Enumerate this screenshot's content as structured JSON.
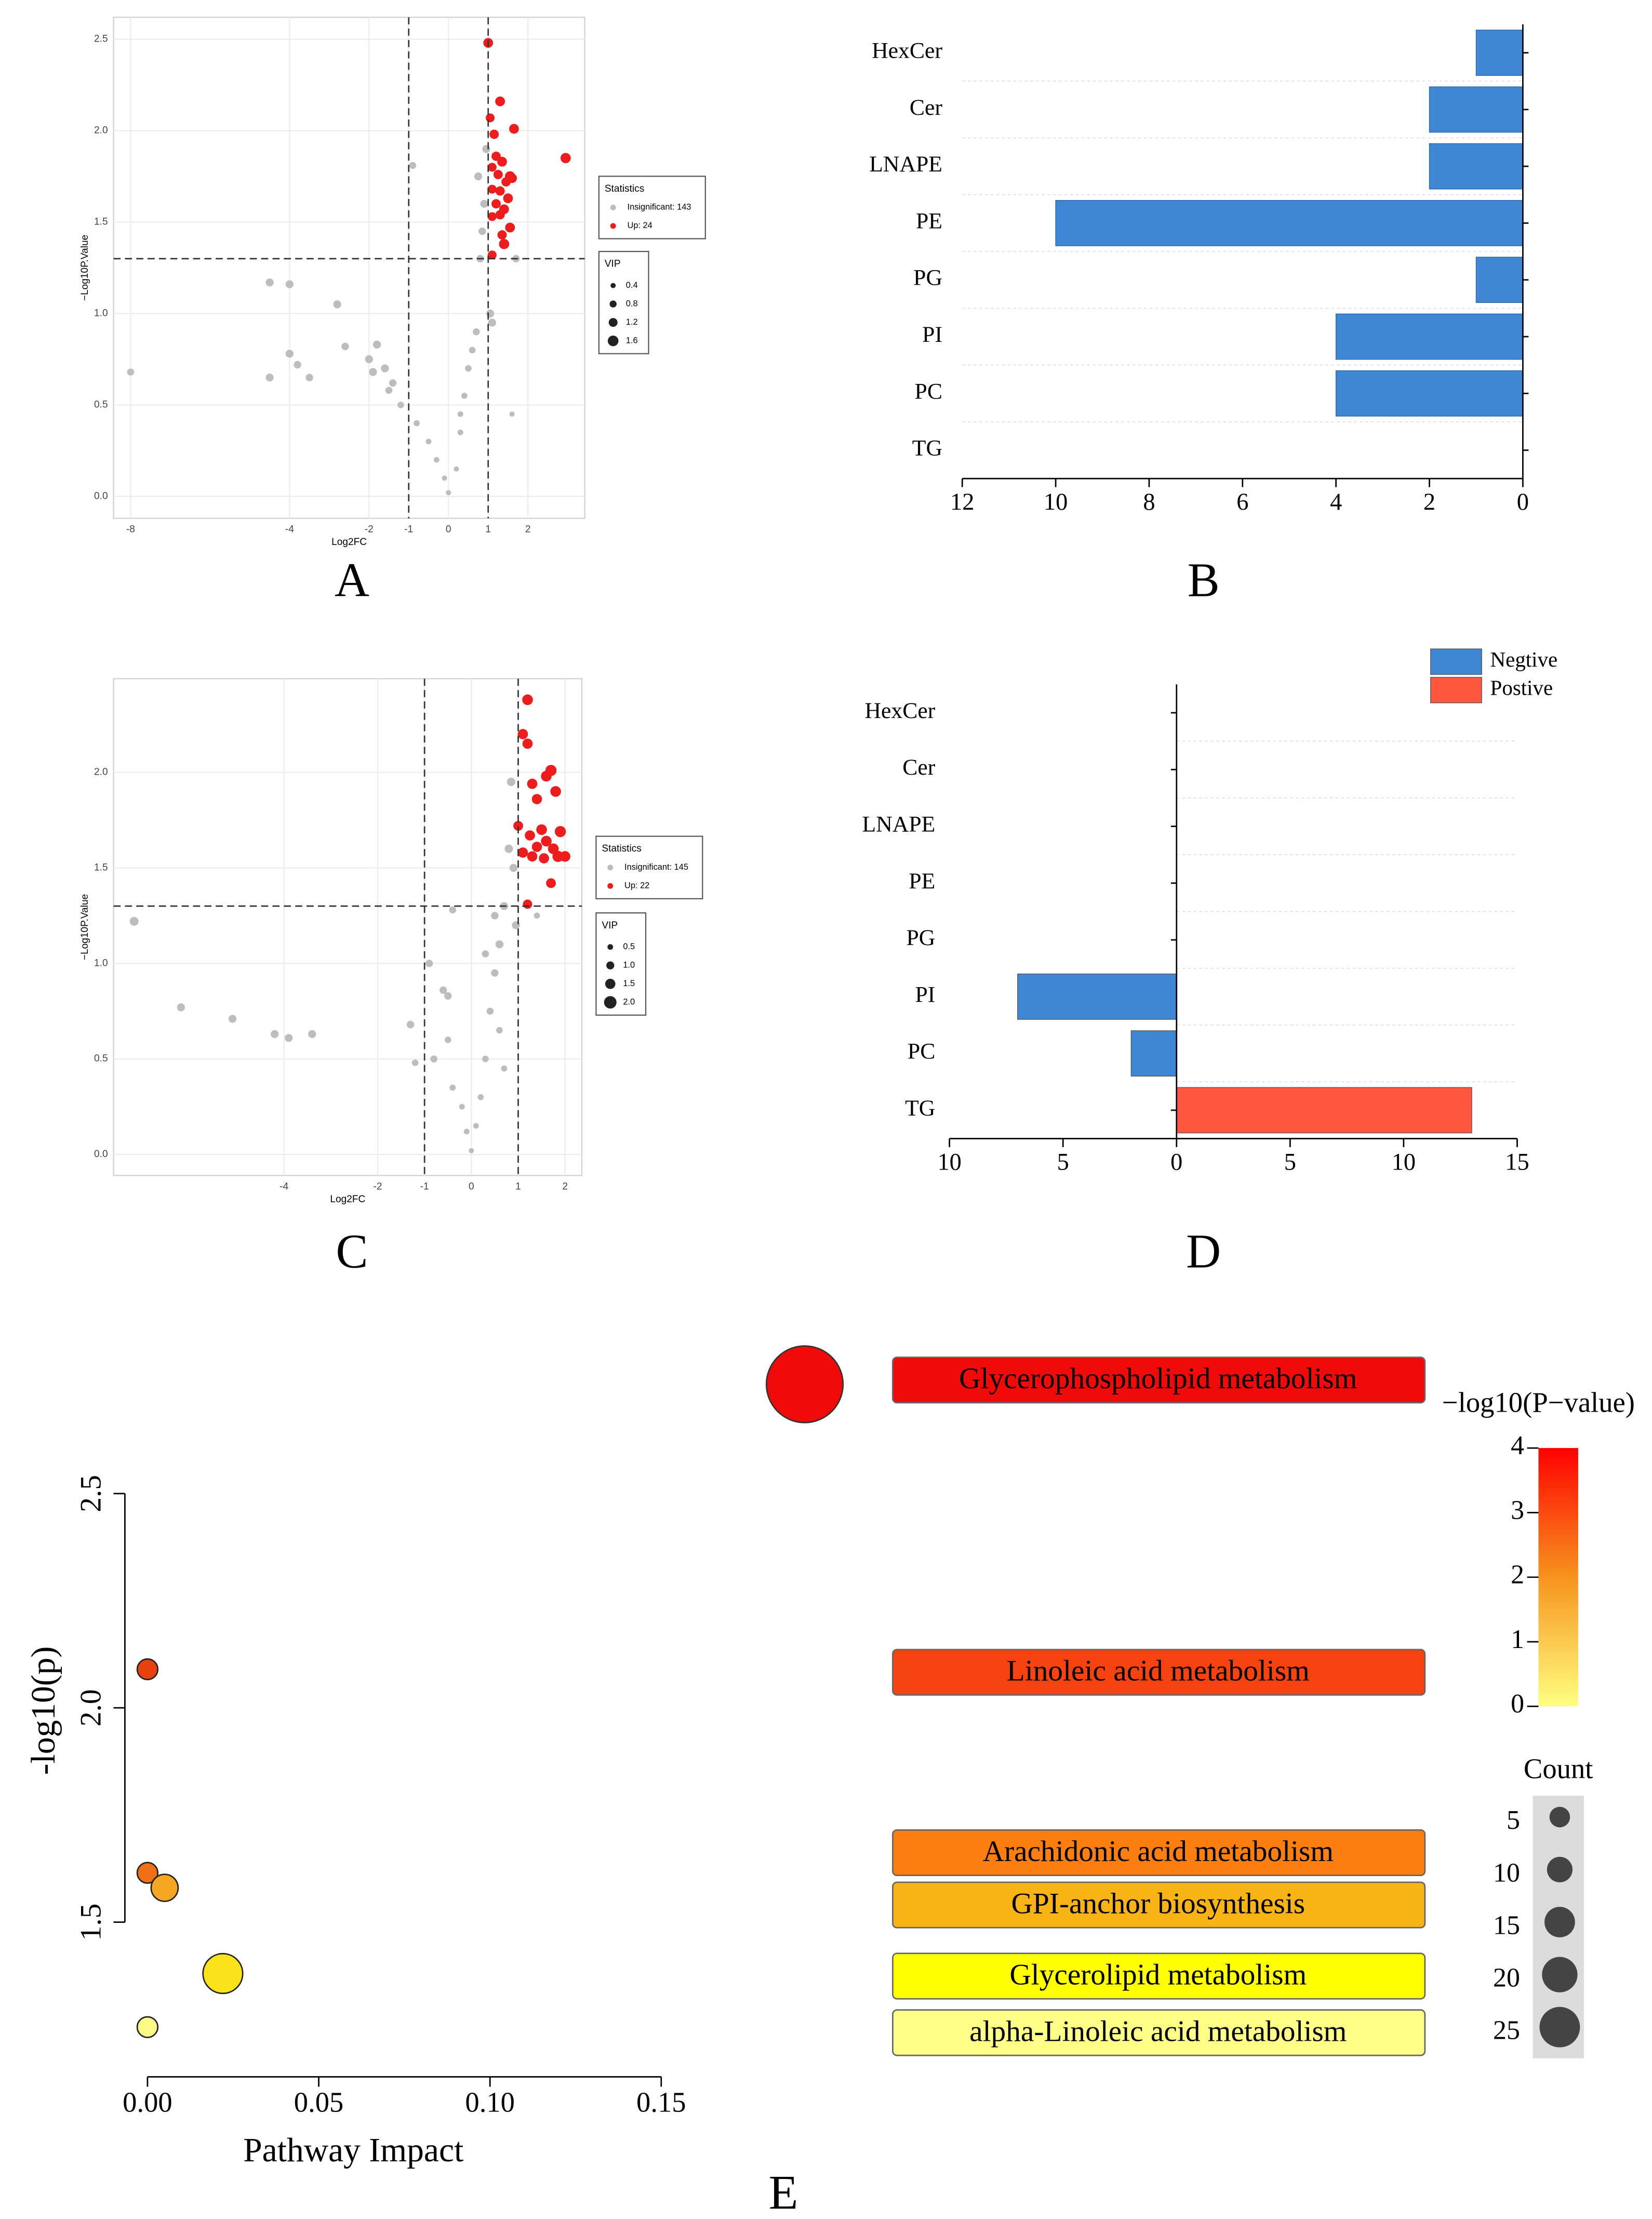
{
  "chart_data": [
    {
      "type": "scatter",
      "panel_label": "A",
      "xlabel": "Log2FC",
      "ylabel": "−Log10P.Value",
      "xlim": [
        -8.43,
        3.43
      ],
      "ylim": [
        -0.12,
        2.62
      ],
      "xticks": [
        -8,
        -4,
        -2,
        -1,
        0,
        1,
        2
      ],
      "yticks": [
        {
          "value": 0,
          "label": "0.0"
        },
        0.5,
        {
          "value": 1,
          "label": "1.0"
        },
        1.5,
        {
          "value": 2,
          "label": "2.0"
        },
        2.5
      ],
      "vlines": [
        -1,
        1
      ],
      "hline": 1.3,
      "grid": true,
      "legend_title": "Statistics",
      "size_title": "VIP",
      "size_ticks": [
        0.4,
        0.8,
        1.2,
        1.6
      ],
      "series": [
        {
          "name": "Insignificant: 143",
          "color": "#bdbdbd",
          "x": [
            -8.0,
            -4.5,
            -4.0,
            -2.8,
            -4.0,
            -4.5,
            -3.8,
            -3.5,
            -2.6,
            -2.0,
            -1.8,
            -1.6,
            -1.4,
            -1.9,
            -1.5,
            -1.2,
            -0.9,
            -0.8,
            -0.5,
            -0.3,
            -0.1,
            0.0,
            0.2,
            0.3,
            0.4,
            0.5,
            0.7,
            0.8,
            0.9,
            0.95,
            0.85,
            1.05,
            1.1,
            0.6,
            0.3,
            1.6,
            1.7,
            0.75
          ],
          "values": [
            0.68,
            1.17,
            1.16,
            1.05,
            0.78,
            0.65,
            0.72,
            0.65,
            0.82,
            0.75,
            0.83,
            0.7,
            0.62,
            0.68,
            0.58,
            0.5,
            1.81,
            0.4,
            0.3,
            0.2,
            0.1,
            0.02,
            0.15,
            0.35,
            0.55,
            0.7,
            0.9,
            1.3,
            1.6,
            1.9,
            1.45,
            1.0,
            0.95,
            0.8,
            0.45,
            0.45,
            1.3,
            1.75
          ],
          "sizes": [
            0.8,
            1.0,
            1.0,
            1.0,
            1.0,
            1.0,
            0.9,
            0.9,
            0.9,
            1.0,
            1.0,
            1.0,
            0.9,
            1.0,
            0.8,
            0.7,
            0.8,
            0.6,
            0.5,
            0.5,
            0.4,
            0.4,
            0.4,
            0.5,
            0.6,
            0.7,
            0.8,
            0.9,
            1.0,
            1.0,
            0.9,
            1.0,
            1.0,
            0.7,
            0.5,
            0.4,
            0.9,
            1.0
          ]
        },
        {
          "name": "Up: 24",
          "color": "#ee1c1c",
          "x": [
            1.0,
            1.3,
            1.05,
            1.65,
            1.15,
            2.95,
            1.2,
            1.35,
            1.1,
            1.25,
            1.55,
            1.45,
            1.6,
            1.1,
            1.3,
            1.5,
            1.2,
            1.4,
            1.1,
            1.3,
            1.55,
            1.35,
            1.4,
            1.1
          ],
          "values": [
            2.48,
            2.16,
            2.07,
            2.01,
            1.98,
            1.85,
            1.86,
            1.83,
            1.8,
            1.76,
            1.75,
            1.72,
            1.74,
            1.68,
            1.67,
            1.63,
            1.6,
            1.57,
            1.53,
            1.54,
            1.47,
            1.43,
            1.38,
            1.32
          ],
          "sizes": [
            1.4,
            1.4,
            1.2,
            1.4,
            1.3,
            1.5,
            1.3,
            1.4,
            1.2,
            1.3,
            1.5,
            1.3,
            1.4,
            1.2,
            1.3,
            1.4,
            1.3,
            1.4,
            1.2,
            1.3,
            1.4,
            1.3,
            1.5,
            1.2
          ]
        }
      ]
    },
    {
      "type": "bar",
      "panel_label": "B",
      "categories": [
        "HexCer",
        "Cer",
        "LNAPE",
        "PE",
        "PG",
        "PI",
        "PC",
        "TG"
      ],
      "values": [
        1,
        2,
        2,
        10,
        1,
        4,
        4,
        0
      ],
      "color": "#3f87d4",
      "xlim": [
        12,
        0
      ],
      "xticks": [
        12,
        10,
        8,
        6,
        4,
        2,
        0
      ]
    },
    {
      "type": "scatter",
      "panel_label": "C",
      "xlabel": "Log2FC",
      "ylabel": "−Log10P.Value",
      "xlim": [
        -7.64,
        2.36
      ],
      "ylim": [
        -0.11,
        2.49
      ],
      "xticks": [
        -4,
        -2,
        -1,
        0,
        1,
        2
      ],
      "yticks": [
        {
          "value": 0,
          "label": "0.0"
        },
        0.5,
        {
          "value": 1,
          "label": "1.0"
        },
        1.5,
        {
          "value": 2,
          "label": "2.0"
        }
      ],
      "vlines": [
        -1,
        1
      ],
      "hline": 1.3,
      "grid": true,
      "legend_title": "Statistics",
      "size_title": "VIP",
      "size_ticks": [
        0.5,
        {
          "value": 1,
          "label": "1.0"
        },
        1.5,
        {
          "value": 2,
          "label": "2.0"
        }
      ],
      "series": [
        {
          "name": "Insignificant: 145",
          "color": "#bdbdbd",
          "x": [
            -7.2,
            -6.2,
            -5.1,
            -4.2,
            -3.9,
            -3.4,
            -1.3,
            -0.9,
            -0.6,
            -0.5,
            -1.2,
            -0.8,
            -0.5,
            -0.4,
            -0.2,
            -0.1,
            0.0,
            0.1,
            0.2,
            0.3,
            0.4,
            0.5,
            0.6,
            0.7,
            0.8,
            0.85,
            0.9,
            0.5,
            0.3,
            0.6,
            -0.4,
            1.4,
            0.95,
            0.7
          ],
          "values": [
            1.22,
            0.77,
            0.71,
            0.63,
            0.61,
            0.63,
            0.68,
            1.0,
            0.86,
            0.83,
            0.48,
            0.5,
            0.6,
            0.35,
            0.25,
            0.12,
            0.02,
            0.15,
            0.3,
            0.5,
            0.75,
            0.95,
            1.1,
            1.3,
            1.6,
            1.95,
            1.5,
            1.25,
            1.05,
            0.65,
            1.28,
            1.25,
            1.2,
            0.45
          ],
          "sizes": [
            1.2,
            1.0,
            1.0,
            1.0,
            1.0,
            1.0,
            0.9,
            0.9,
            0.9,
            0.9,
            0.7,
            0.8,
            0.7,
            0.6,
            0.5,
            0.5,
            0.4,
            0.5,
            0.6,
            0.7,
            0.8,
            0.9,
            1.0,
            1.0,
            1.1,
            1.1,
            1.0,
            0.9,
            0.8,
            0.7,
            0.8,
            0.6,
            1.0,
            0.6
          ]
        },
        {
          "name": "Up: 22",
          "color": "#ee1c1c",
          "x": [
            1.2,
            1.1,
            1.2,
            1.7,
            1.6,
            1.3,
            1.8,
            1.4,
            1.0,
            1.5,
            1.9,
            1.25,
            1.6,
            1.4,
            1.75,
            1.1,
            1.3,
            1.85,
            2.0,
            1.55,
            1.7,
            1.2
          ],
          "values": [
            2.38,
            2.2,
            2.15,
            2.01,
            1.98,
            1.94,
            1.9,
            1.86,
            1.72,
            1.7,
            1.69,
            1.67,
            1.64,
            1.61,
            1.6,
            1.58,
            1.56,
            1.56,
            1.56,
            1.55,
            1.42,
            1.31
          ],
          "sizes": [
            1.6,
            1.5,
            1.5,
            1.7,
            1.6,
            1.5,
            1.6,
            1.5,
            1.4,
            1.6,
            1.7,
            1.5,
            1.6,
            1.5,
            1.6,
            1.5,
            1.5,
            1.7,
            1.6,
            1.5,
            1.4,
            1.3
          ]
        }
      ]
    },
    {
      "type": "diverging",
      "panel_label": "D",
      "categories": [
        "HexCer",
        "Cer",
        "LNAPE",
        "PE",
        "PG",
        "PI",
        "PC",
        "TG"
      ],
      "series": [
        {
          "name": "Negtive",
          "color": "#3f87d4",
          "values": [
            0,
            0,
            0,
            0,
            0,
            -7,
            -2,
            0
          ]
        },
        {
          "name": "Postive",
          "color": "#ff5640",
          "values": [
            0,
            0,
            0,
            0,
            0,
            0,
            0,
            13
          ]
        }
      ],
      "xlim": [
        -10,
        15
      ],
      "xticks": [
        {
          "value": -10,
          "label": "10"
        },
        {
          "value": -5,
          "label": "5"
        },
        0,
        5,
        10,
        15
      ]
    },
    {
      "type": "bubble",
      "panel_label": "E",
      "xlabel": "Pathway Impact",
      "ylabel": "-log10(p)",
      "x": [
        0.0,
        0.0,
        0.005,
        0.022,
        0.0
      ],
      "values": [
        2.09,
        1.615,
        1.58,
        1.38,
        1.255
      ],
      "sizes": [
        5,
        5,
        10,
        20,
        5
      ],
      "colors": [
        "#e8400e",
        "#f07018",
        "#f5a623",
        "#f8e31a",
        "#fafa86"
      ],
      "xlim": [
        -0.0066,
        0.1517
      ],
      "ylim": [
        1.139,
        2.55
      ],
      "xticks": [
        {
          "value": 0,
          "label": "0.00"
        },
        0.05,
        {
          "value": 0.1,
          "label": "0.10"
        },
        0.15
      ],
      "yticks": [
        1.5,
        {
          "value": 2,
          "label": "2.0"
        },
        2.5
      ]
    },
    {
      "type": "pathway",
      "pathways": [
        "Glycerophospholipid metabolism",
        "Linoleic acid metabolism",
        "Arachidonic acid metabolism",
        "GPI-anchor biosynthesis",
        "Glycerolipid metabolism",
        "alpha-Linoleic acid metabolism"
      ],
      "values": [
        2.765,
        2.083,
        1.662,
        1.54,
        1.374,
        1.242
      ],
      "colors": [
        "#f00a0a",
        "#f5420f",
        "#fb7f10",
        "#f8b414",
        "#ffff00",
        "#ffff88"
      ],
      "colorbar_title": "−log10(P−value)",
      "colorbar_ticks": [
        0,
        1,
        2,
        3,
        4
      ],
      "size_title": "Count",
      "size_ticks": [
        5,
        10,
        15,
        20,
        25
      ]
    }
  ]
}
